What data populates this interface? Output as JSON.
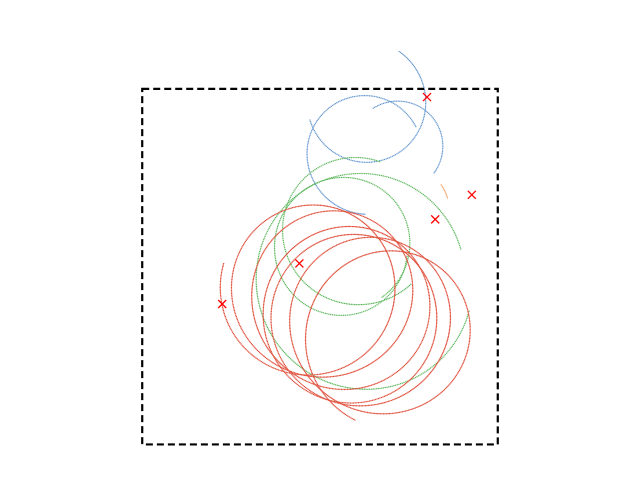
{
  "chart_data": {
    "type": "scatter",
    "title": "",
    "xlabel": "",
    "ylabel": "",
    "axes_visible": false,
    "grid": false,
    "legend": "none",
    "boundary": {
      "style": "dashed",
      "color": "#000000",
      "x": [
        0,
        10
      ],
      "y": [
        0,
        10
      ]
    },
    "xlim": [
      -4,
      14
    ],
    "ylim": [
      -1,
      12.5
    ],
    "series": [
      {
        "color": "#6b9bd1",
        "marker": "dot",
        "path": [
          {
            "center": [
              6.28,
              8.07
            ],
            "r": 1.66,
            "t0": 0.55,
            "t1": 4.7
          },
          {
            "center": [
              6.31,
              9.72
            ],
            "r": 1.7,
            "t0": 3.5,
            "t1": 7.25
          },
          {
            "center": [
              7.11,
              8.33
            ],
            "r": 1.3,
            "t0": 5.72,
            "t1": 8.35
          }
        ],
        "points_per_unit": 22
      },
      {
        "color": "#f0a063",
        "marker": "dot",
        "path": [
          {
            "center": [
              7.36,
              6.49
            ],
            "r": 1.3,
            "t0": 6.63,
            "t1": 6.94
          }
        ],
        "points_per_unit": 22
      },
      {
        "color": "#5fb85f",
        "marker": "dot",
        "path": [
          {
            "center": [
              5.54,
              5.61
            ],
            "r": 1.9,
            "t0": 5.4,
            "t1": 12.4
          },
          {
            "center": [
              6.14,
              4.47
            ],
            "r": 3.0,
            "t0": 0.35,
            "t1": 6.05
          },
          {
            "center": [
              6.12,
              5.93
            ],
            "r": 2.1,
            "t0": 1.3,
            "t1": 5.5
          }
        ],
        "points_per_unit": 20
      },
      {
        "color": "#e0503c",
        "marker": "dot",
        "path": [
          {
            "center": [
              4.62,
              4.51
            ],
            "r": 2.4,
            "t0": 2.9,
            "t1": 42.0,
            "drift": [
              0.006,
              -0.004
            ]
          }
        ],
        "points_per_unit": 24
      }
    ],
    "markers": {
      "symbol": "x",
      "color": "#ff0000",
      "points": [
        [
          8.01,
          9.77
        ],
        [
          9.27,
          7.02
        ],
        [
          8.24,
          6.33
        ],
        [
          4.42,
          5.09
        ],
        [
          2.25,
          3.95
        ]
      ]
    }
  }
}
